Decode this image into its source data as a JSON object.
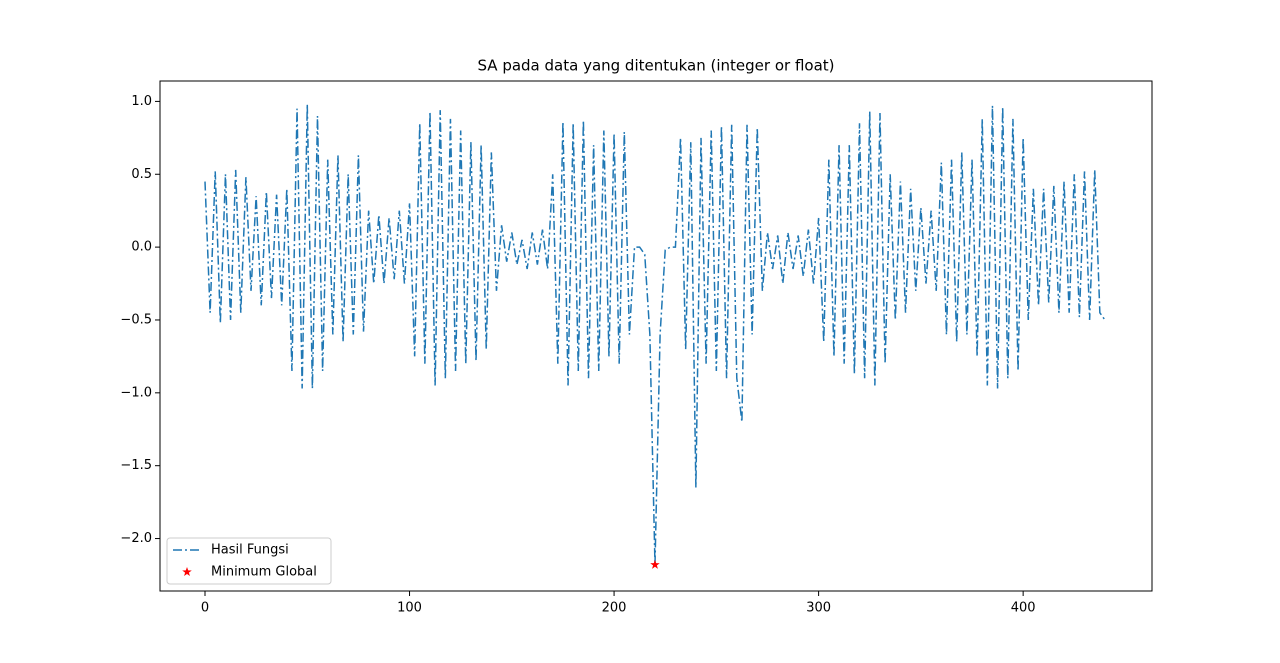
{
  "chart_data": {
    "type": "line",
    "title": "SA pada data yang ditentukan (integer or float)",
    "x": [
      0,
      2.5,
      5,
      7.5,
      10,
      12.5,
      15,
      17.5,
      20,
      22.5,
      25,
      27.5,
      30,
      32.5,
      35,
      37.5,
      40,
      42.5,
      45,
      47.5,
      50,
      52.5,
      55,
      57.5,
      60,
      62.5,
      65,
      67.5,
      70,
      72.5,
      75,
      77.5,
      80,
      82.5,
      85,
      87.5,
      90,
      92.5,
      95,
      97.5,
      100,
      102.5,
      105,
      107.5,
      110,
      112.5,
      115,
      117.5,
      120,
      122.5,
      125,
      127.5,
      130,
      132.5,
      135,
      137.5,
      140,
      142.5,
      145,
      147.5,
      150,
      152.5,
      155,
      157.5,
      160,
      162.5,
      165,
      167.5,
      170,
      172.5,
      175,
      177.5,
      180,
      182.5,
      185,
      187.5,
      190,
      192.5,
      195,
      197.5,
      200,
      202.5,
      205,
      207.5,
      210,
      212.5,
      215,
      217.5,
      220,
      222.5,
      225,
      227.5,
      230,
      232.5,
      235,
      237.5,
      240,
      242.5,
      245,
      247.5,
      250,
      252.5,
      255,
      257.5,
      260,
      262.5,
      265,
      267.5,
      270,
      272.5,
      275,
      277.5,
      280,
      282.5,
      285,
      287.5,
      290,
      292.5,
      295,
      297.5,
      300,
      302.5,
      305,
      307.5,
      310,
      312.5,
      315,
      317.5,
      320,
      322.5,
      325,
      327.5,
      330,
      332.5,
      335,
      337.5,
      340,
      342.5,
      345,
      347.5,
      350,
      352.5,
      355,
      357.5,
      360,
      362.5,
      365,
      367.5,
      370,
      372.5,
      375,
      377.5,
      380,
      382.5,
      385,
      387.5,
      390,
      392.5,
      395,
      397.5,
      400,
      402.5,
      405,
      407.5,
      410,
      412.5,
      415,
      417.5,
      420,
      422.5,
      425,
      427.5,
      430,
      432.5,
      435,
      437.5,
      440
    ],
    "series": [
      {
        "name": "Hasil Fungsi",
        "color": "#1f77b4",
        "linestyle": "dashdot",
        "values": [
          0.45,
          -0.45,
          0.52,
          -0.52,
          0.5,
          -0.5,
          0.53,
          -0.45,
          0.48,
          -0.3,
          0.35,
          -0.4,
          0.38,
          -0.35,
          0.36,
          -0.4,
          0.4,
          -0.85,
          0.95,
          -0.97,
          0.98,
          -0.97,
          0.9,
          -0.85,
          0.6,
          -0.6,
          0.63,
          -0.65,
          0.5,
          -0.6,
          0.63,
          -0.58,
          0.25,
          -0.25,
          0.22,
          -0.25,
          0.2,
          -0.22,
          0.25,
          -0.25,
          0.3,
          -0.75,
          0.85,
          -0.8,
          0.93,
          -0.95,
          0.94,
          -0.9,
          0.88,
          -0.85,
          0.8,
          -0.8,
          0.72,
          -0.78,
          0.7,
          -0.7,
          0.65,
          -0.3,
          0.15,
          -0.1,
          0.1,
          -0.12,
          0.05,
          -0.15,
          0.1,
          -0.12,
          0.12,
          -0.15,
          0.5,
          -0.8,
          0.86,
          -0.95,
          0.85,
          -0.85,
          0.87,
          -0.9,
          0.7,
          -0.85,
          0.8,
          -0.75,
          0.78,
          -0.8,
          0.79,
          -0.6,
          0.0,
          0.0,
          -0.05,
          -0.6,
          -2.18,
          -0.6,
          -0.02,
          0.0,
          0.0,
          0.75,
          -0.7,
          0.72,
          -1.65,
          0.75,
          -0.8,
          0.8,
          -0.85,
          0.83,
          -0.9,
          0.84,
          -0.9,
          -1.2,
          0.84,
          -0.6,
          0.82,
          -0.3,
          0.1,
          -0.15,
          0.08,
          -0.25,
          0.1,
          -0.15,
          0.08,
          -0.2,
          0.12,
          -0.25,
          0.2,
          -0.65,
          0.6,
          -0.75,
          0.7,
          -0.8,
          0.7,
          -0.87,
          0.85,
          -0.9,
          0.93,
          -0.95,
          0.92,
          -0.8,
          0.5,
          -0.5,
          0.45,
          -0.45,
          0.4,
          -0.3,
          0.27,
          -0.25,
          0.25,
          -0.3,
          0.58,
          -0.6,
          0.6,
          -0.65,
          0.65,
          -0.6,
          0.6,
          -0.75,
          0.88,
          -0.95,
          0.97,
          -0.97,
          0.96,
          -0.9,
          0.88,
          -0.85,
          0.75,
          -0.5,
          0.4,
          -0.4,
          0.4,
          -0.38,
          0.42,
          -0.45,
          0.45,
          -0.45,
          0.5,
          -0.48,
          0.52,
          -0.5,
          0.53,
          -0.45,
          -0.5
        ]
      },
      {
        "name": "Minimum Global",
        "color": "#ff0000",
        "type": "scatter",
        "marker": "star",
        "x": [
          220
        ],
        "values": [
          -2.18
        ]
      }
    ],
    "xlim": [
      -22,
      463
    ],
    "ylim": [
      -2.36,
      1.14
    ],
    "xticks": [
      0,
      100,
      200,
      300,
      400
    ],
    "yticks": [
      {
        "value": -2.0,
        "label": "−2.0"
      },
      {
        "value": -1.5,
        "label": "−1.5"
      },
      {
        "value": -1.0,
        "label": "−1.0"
      },
      {
        "value": -0.5,
        "label": "−0.5"
      },
      {
        "value": 0.0,
        "label": "0.0"
      },
      0.5,
      {
        "value": 1.0,
        "label": "1.0"
      }
    ],
    "legend": "lower left"
  }
}
